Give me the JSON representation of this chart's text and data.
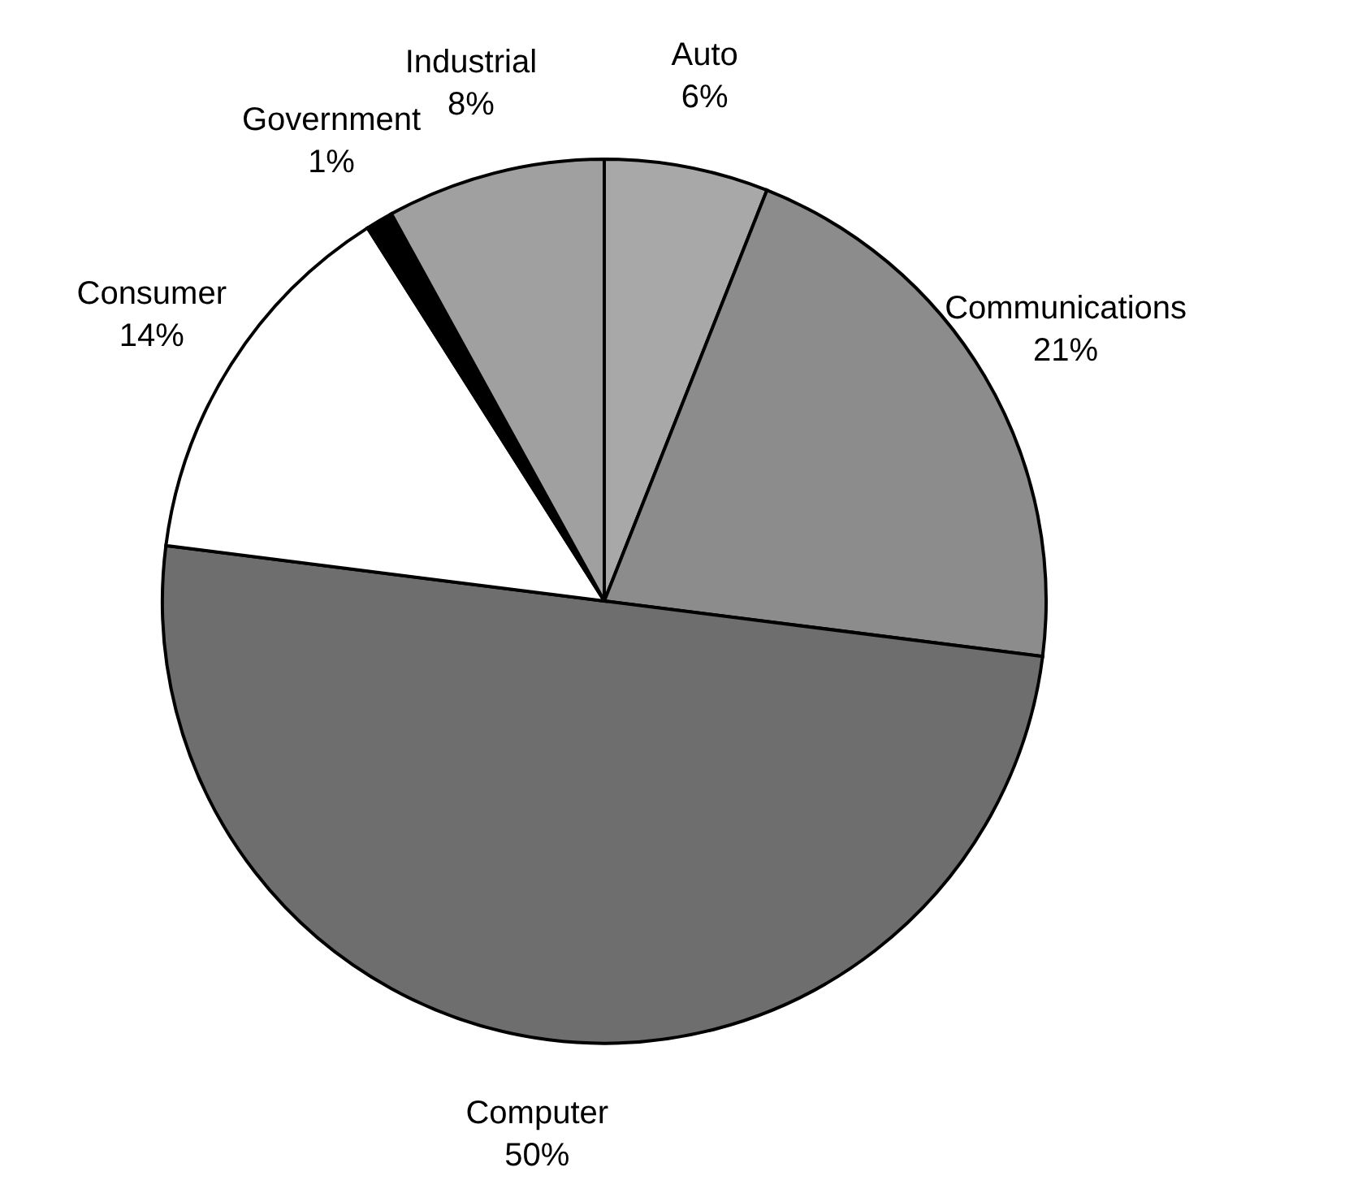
{
  "chart_data": {
    "type": "pie",
    "categories": [
      "Auto",
      "Communications",
      "Computer",
      "Consumer",
      "Government",
      "Industrial"
    ],
    "values": [
      6,
      21,
      50,
      14,
      1,
      8
    ],
    "value_labels": [
      "6%",
      "21%",
      "50%",
      "14%",
      "1%",
      "8%"
    ],
    "colors": [
      "#a8a8a8",
      "#8c8c8c",
      "#6e6e6e",
      "#ffffff",
      "#000000",
      "#a0a0a0"
    ]
  }
}
